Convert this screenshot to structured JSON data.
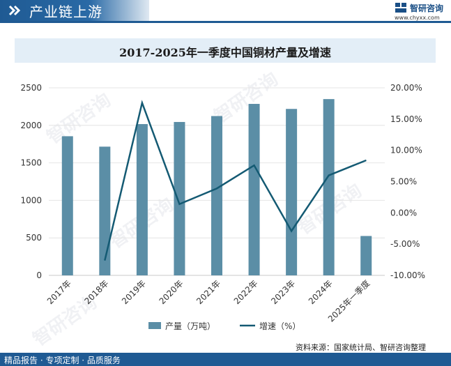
{
  "header": {
    "section_title": "产业链上游"
  },
  "logo": {
    "name": "智研咨询",
    "url": "www.chyxx.com"
  },
  "colors": {
    "bar": "#5b8ea6",
    "line": "#145a73",
    "brand": "#1f5a93"
  },
  "chart_data": {
    "type": "bar+line",
    "title": "2017-2025年一季度中国铜材产量及增速",
    "categories": [
      "2017年",
      "2018年",
      "2019年",
      "2020年",
      "2021年",
      "2022年",
      "2023年",
      "2024年",
      "2025年一季度"
    ],
    "series": [
      {
        "name": "产量（万吨）",
        "type": "bar",
        "axis": "left",
        "values": [
          1855,
          1716,
          2017,
          2045,
          2124,
          2286,
          2219,
          2350,
          525
        ]
      },
      {
        "name": "增速（%）",
        "type": "line",
        "axis": "right",
        "values": [
          null,
          -7.6,
          17.6,
          1.4,
          3.9,
          7.6,
          -2.9,
          6.0,
          8.4
        ]
      }
    ],
    "left_axis": {
      "min": 0,
      "max": 2500,
      "ticks": [
        "0",
        "500",
        "1000",
        "1500",
        "2000",
        "2500"
      ]
    },
    "right_axis": {
      "min": -10,
      "max": 20,
      "ticks": [
        "-10.00%",
        "-5.00%",
        "0.00%",
        "5.00%",
        "10.00%",
        "15.00%",
        "20.00%"
      ]
    },
    "legend": {
      "position": "bottom",
      "items": [
        "产量（万吨）",
        "增速（%）"
      ]
    },
    "grid": true
  },
  "footer": {
    "left_text": "精品报告 · 专项定制 · 品质服务",
    "source": "资料来源：国家统计局、智研咨询整理"
  },
  "watermark": {
    "text": "智研咨询"
  }
}
